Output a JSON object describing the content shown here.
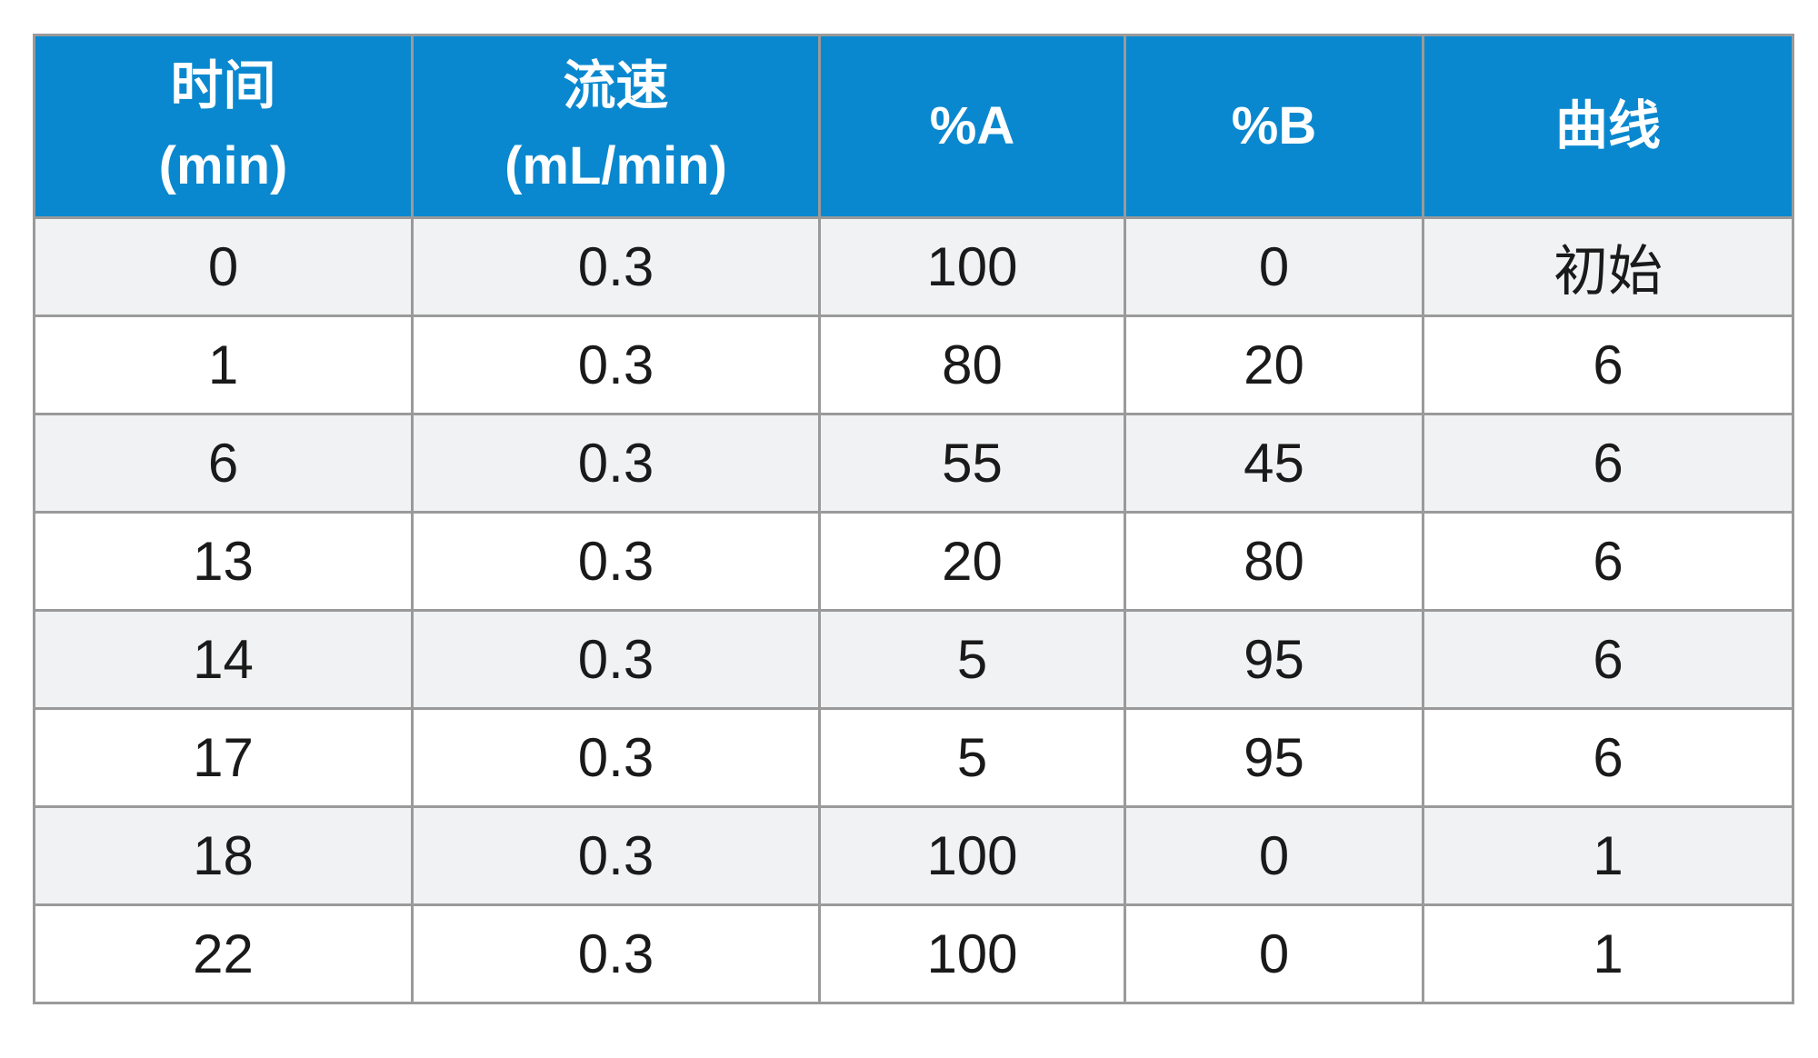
{
  "table": {
    "headers": [
      [
        "时间",
        "(min)"
      ],
      [
        "流速",
        "(mL/min)"
      ],
      [
        "%A"
      ],
      [
        "%B"
      ],
      [
        "曲线"
      ]
    ],
    "rows": [
      [
        "0",
        "0.3",
        "100",
        "0",
        "初始"
      ],
      [
        "1",
        "0.3",
        "80",
        "20",
        "6"
      ],
      [
        "6",
        "0.3",
        "55",
        "45",
        "6"
      ],
      [
        "13",
        "0.3",
        "20",
        "80",
        "6"
      ],
      [
        "14",
        "0.3",
        "5",
        "95",
        "6"
      ],
      [
        "17",
        "0.3",
        "5",
        "95",
        "6"
      ],
      [
        "18",
        "0.3",
        "100",
        "0",
        "1"
      ],
      [
        "22",
        "0.3",
        "100",
        "0",
        "1"
      ]
    ]
  },
  "colors": {
    "header_bg": "#0a88cf",
    "header_text": "#ffffff",
    "row_odd_bg": "#f1f2f3",
    "row_even_bg": "#ffffff",
    "border": "#9a9a9a"
  }
}
